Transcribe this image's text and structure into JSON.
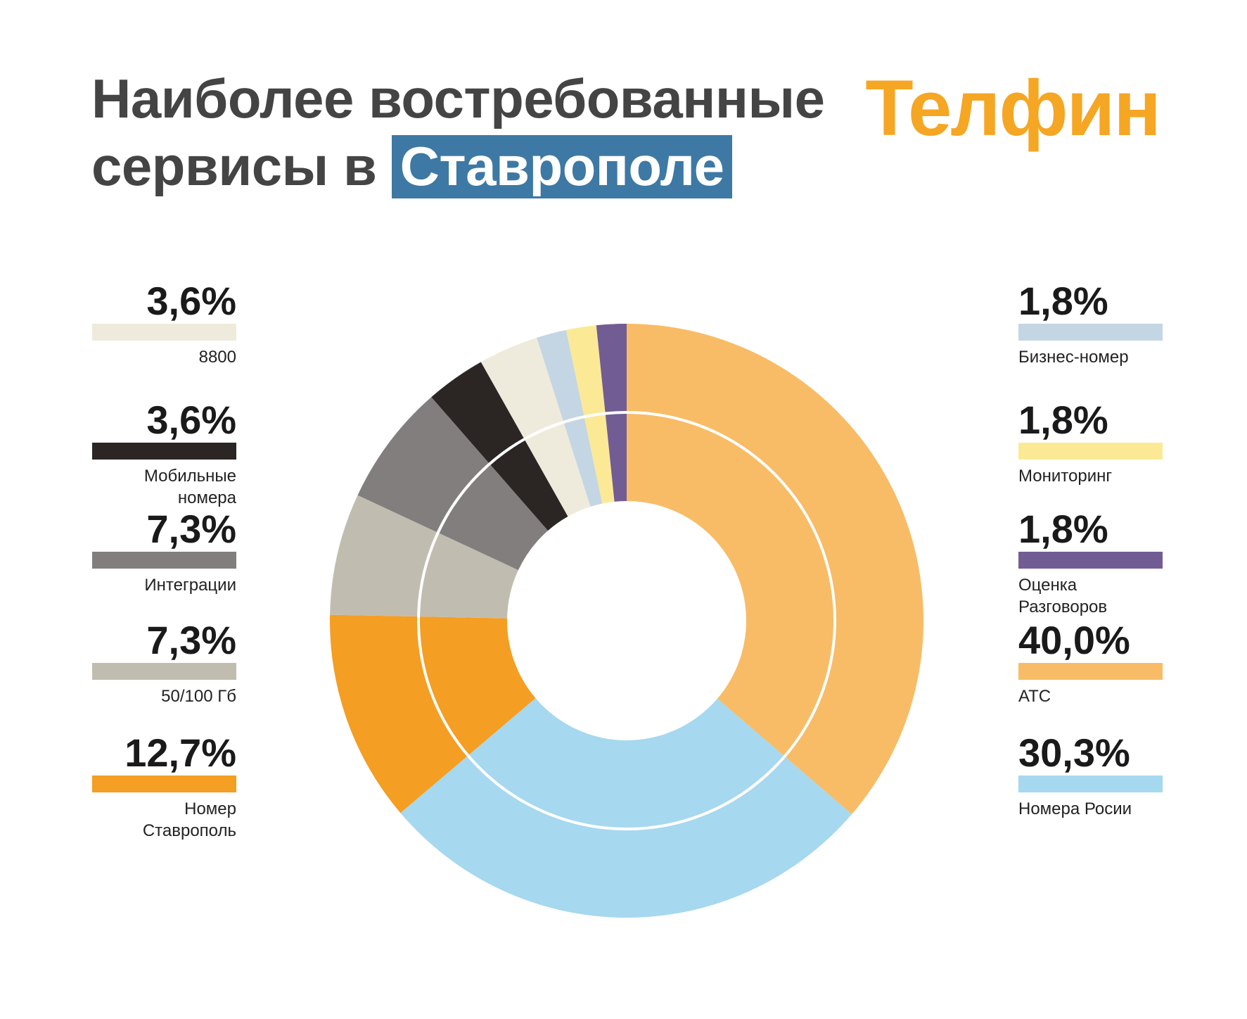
{
  "header": {
    "title_line1": "Наиболее востребованные",
    "title_line2_prefix": "сервисы в ",
    "title_highlight": "Ставрополе",
    "brand": "Телфин"
  },
  "legend_left": [
    {
      "value": "3,6%",
      "label": "8800",
      "color": "#efebdc"
    },
    {
      "value": "3,6%",
      "label": "Мобильные\nномера",
      "color": "#2b2624"
    },
    {
      "value": "7,3%",
      "label": "Интеграции",
      "color": "#827e7e"
    },
    {
      "value": "7,3%",
      "label": "50/100 Гб",
      "color": "#c0bdb0"
    },
    {
      "value": "12,7%",
      "label": "Номер\nСтаврополь",
      "color": "#f49e23"
    }
  ],
  "legend_right": [
    {
      "value": "1,8%",
      "label": "Бизнес-номер",
      "color": "#c4d6e3"
    },
    {
      "value": "1,8%",
      "label": "Мониторинг",
      "color": "#fce996"
    },
    {
      "value": "1,8%",
      "label": "Оценка\nРазговоров",
      "color": "#725c94"
    },
    {
      "value": "40,0%",
      "label": "АТС",
      "color": "#f8bc66"
    },
    {
      "value": "30,3%",
      "label": "Номера Росии",
      "color": "#a6d8ef"
    }
  ],
  "chart_data": {
    "type": "pie",
    "variant": "donut",
    "categories": [
      "АТС",
      "Номера Росии",
      "Номер Ставрополь",
      "50/100 Гб",
      "Интеграции",
      "Мобильные номера",
      "8800",
      "Бизнес-номер",
      "Мониторинг",
      "Оценка Разговоров"
    ],
    "values": [
      40.0,
      30.3,
      12.7,
      7.3,
      7.3,
      3.6,
      3.6,
      1.8,
      1.8,
      1.8
    ],
    "colors": [
      "#f8bc66",
      "#a6d8ef",
      "#f49e23",
      "#c0bdb0",
      "#827e7e",
      "#2b2624",
      "#efebdc",
      "#c4d6e3",
      "#fce996",
      "#725c94"
    ],
    "start": "12 o'clock",
    "direction": "clockwise",
    "legend": "left and right columns"
  }
}
